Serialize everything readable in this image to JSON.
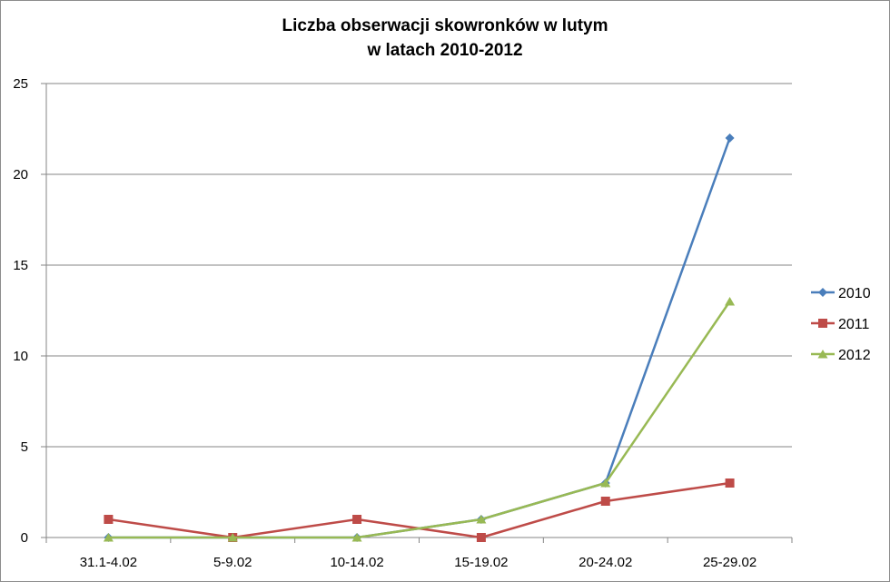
{
  "chart_data": {
    "type": "line",
    "title_line1": "Liczba obserwacji skowronków w lutym",
    "title_line2": "w latach 2010-2012",
    "categories": [
      "31.1-4.02",
      "5-9.02",
      "10-14.02",
      "15-19.02",
      "20-24.02",
      "25-29.02"
    ],
    "ylim": [
      0,
      25
    ],
    "yticks": [
      0,
      5,
      10,
      15,
      20,
      25
    ],
    "grid": true,
    "legend_position": "right",
    "series": [
      {
        "name": "2010",
        "color": "#4a7ebb",
        "marker": "diamond",
        "values": [
          0,
          0,
          0,
          1,
          3,
          22
        ]
      },
      {
        "name": "2011",
        "color": "#be4b48",
        "marker": "square",
        "values": [
          1,
          0,
          1,
          0,
          2,
          3
        ]
      },
      {
        "name": "2012",
        "color": "#98b954",
        "marker": "triangle",
        "values": [
          0,
          0,
          0,
          1,
          3,
          13
        ]
      }
    ]
  }
}
